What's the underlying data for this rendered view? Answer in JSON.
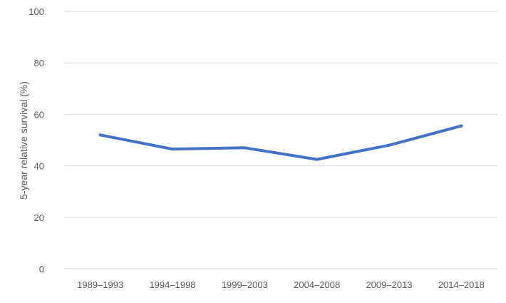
{
  "chart_data": {
    "type": "line",
    "title": "",
    "xlabel": "",
    "ylabel": "5-year relative survival (%)",
    "categories": [
      "1989–1993",
      "1994–1998",
      "1999–2003",
      "2004–2008",
      "2009–2013",
      "2014–2018"
    ],
    "series": [
      {
        "values": [
          52.0,
          46.5,
          47.0,
          42.5,
          48.0,
          55.5
        ],
        "color": "#4472c4"
      }
    ],
    "ylim": [
      0,
      100
    ],
    "yticks": [
      0,
      20,
      40,
      60,
      80,
      100
    ],
    "grid": true,
    "legend": "none"
  }
}
